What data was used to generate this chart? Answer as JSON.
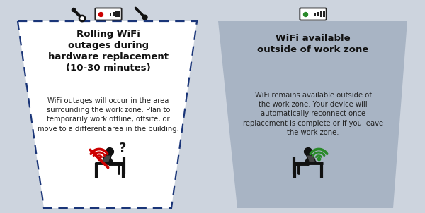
{
  "bg_color": "#cdd4de",
  "left_zone": {
    "trapezoid_color": "#ffffff",
    "border_color": "#1a3578",
    "title": "Rolling WiFi\noutages during\nhardware replacement\n(10-30 minutes)",
    "body": "WiFi outages will occur in the area\nsurrounding the work zone. Plan to\ntemporarily work offline, offsite, or\nmove to a different area in the building.",
    "title_fontsize": 9.5,
    "body_fontsize": 7.2,
    "title_color": "#111111",
    "body_color": "#222222",
    "router_dot_color": "#cc0000"
  },
  "right_zone": {
    "trapezoid_color": "#a8b4c4",
    "title": "WiFi available\noutside of work zone",
    "body": "WiFi remains available outside of\nthe work zone. Your device will\nautomatically reconnect once\nreplacement is complete or if you leave\nthe work zone.",
    "title_fontsize": 9.5,
    "body_fontsize": 7.2,
    "title_color": "#111111",
    "body_color": "#222222",
    "router_dot_color": "#2a8a2a"
  },
  "figure_color": "#111111",
  "no_wifi_color": "#cc0000",
  "wifi_color": "#2a8a2a"
}
